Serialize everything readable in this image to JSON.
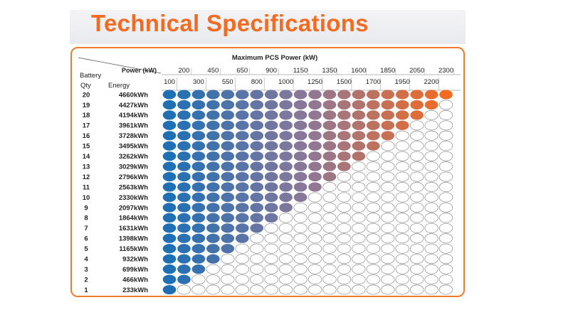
{
  "title": "Technical Specifications",
  "table": {
    "heading": "Maximum PCS Power (kW)",
    "power_label": "Power (kW)",
    "battery_label": "Battery",
    "qty_label": "Qty",
    "energy_label": "Energy",
    "power_top_row": [
      "200",
      "450",
      "650",
      "900",
      "1150",
      "1350",
      "1600",
      "1850",
      "2050",
      "2300"
    ],
    "power_bottom_row": [
      "100",
      "300",
      "550",
      "800",
      "1000",
      "1250",
      "1500",
      "1700",
      "1950",
      "2200"
    ],
    "rows": [
      {
        "qty": "20",
        "energy": "4660kWh"
      },
      {
        "qty": "19",
        "energy": "4427kWh"
      },
      {
        "qty": "18",
        "energy": "4194kWh"
      },
      {
        "qty": "17",
        "energy": "3961kWh"
      },
      {
        "qty": "16",
        "energy": "3728kWh"
      },
      {
        "qty": "15",
        "energy": "3495kWh"
      },
      {
        "qty": "14",
        "energy": "3262kWh"
      },
      {
        "qty": "13",
        "energy": "3029kWh"
      },
      {
        "qty": "12",
        "energy": "2796kWh"
      },
      {
        "qty": "11",
        "energy": "2563kWh"
      },
      {
        "qty": "10",
        "energy": "2330kWh"
      },
      {
        "qty": "9",
        "energy": "2097kWh"
      },
      {
        "qty": "8",
        "energy": "1864kWh"
      },
      {
        "qty": "7",
        "energy": "1631kWh"
      },
      {
        "qty": "6",
        "energy": "1398kWh"
      },
      {
        "qty": "5",
        "energy": "1165kWh"
      },
      {
        "qty": "4",
        "energy": "932kWh"
      },
      {
        "qty": "3",
        "energy": "699kWh"
      },
      {
        "qty": "2",
        "energy": "466kWh"
      },
      {
        "qty": "1",
        "energy": "233kWh"
      }
    ],
    "colors": {
      "accent": "#f26b22",
      "low_power": "#1f6fb5",
      "mid_power": "#8d7898",
      "high_power": "#f26b22",
      "empty_fill": "#ffffff",
      "empty_stroke": "#9a9a9a"
    }
  }
}
